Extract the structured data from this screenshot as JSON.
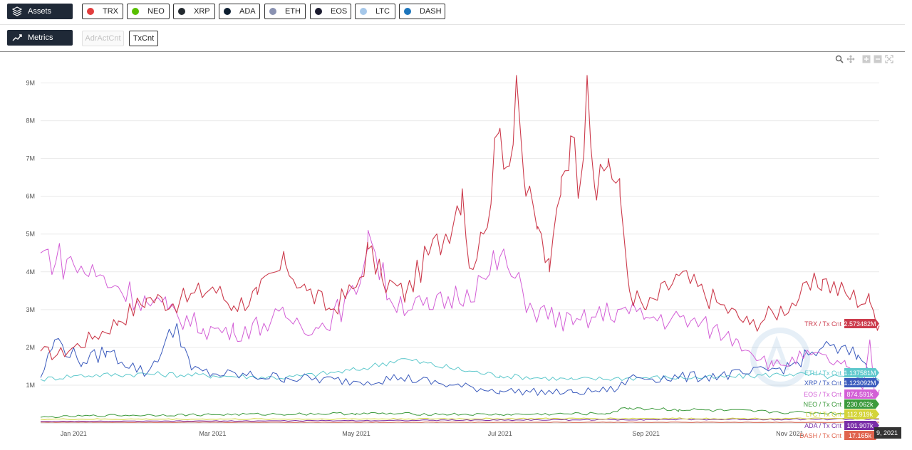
{
  "toolbar": {
    "assets_label": "Assets",
    "metrics_label": "Metrics",
    "assets": [
      {
        "symbol": "TRX",
        "color": "#e23d3d",
        "icon": "tron-icon"
      },
      {
        "symbol": "NEO",
        "color": "#58bf00",
        "icon": "neo-icon"
      },
      {
        "symbol": "XRP",
        "color": "#23292f",
        "icon": "xrp-icon"
      },
      {
        "symbol": "ADA",
        "color": "#0d1e30",
        "icon": "cardano-icon"
      },
      {
        "symbol": "ETH",
        "color": "#8a92b2",
        "icon": "ethereum-icon"
      },
      {
        "symbol": "EOS",
        "color": "#1b1b2f",
        "icon": "eos-icon"
      },
      {
        "symbol": "LTC",
        "color": "#a6c8ea",
        "icon": "litecoin-icon"
      },
      {
        "symbol": "DASH",
        "color": "#1c75bc",
        "icon": "dash-icon"
      }
    ],
    "metrics": [
      {
        "label": "AdrActCnt",
        "active": false
      },
      {
        "label": "TxCnt",
        "active": true
      }
    ]
  },
  "chart_data": {
    "type": "line",
    "y_ticks": [
      "1M",
      "2M",
      "3M",
      "4M",
      "5M",
      "6M",
      "7M",
      "8M",
      "9M"
    ],
    "x_ticks": [
      "Jan 2021",
      "Mar 2021",
      "May 2021",
      "Jul 2021",
      "Sep 2021",
      "Nov 2021"
    ],
    "ylim": [
      0,
      9500000
    ],
    "xlim": [
      "2020-12-18",
      "2021-12-09"
    ],
    "grid": true,
    "crosshair_date_partial": "9, 2021",
    "series": [
      {
        "name": "TRX / Tx Cnt",
        "color": "#cc3b4c",
        "last_value": "2.573482M",
        "points": [
          [
            "2020-12-18",
            1900000.0
          ],
          [
            "2020-12-25",
            1800000.0
          ],
          [
            "2021-01-01",
            2000000.0
          ],
          [
            "2021-01-10",
            2300000.0
          ],
          [
            "2021-01-20",
            2700000.0
          ],
          [
            "2021-02-01",
            3300000.0
          ],
          [
            "2021-02-15",
            3200000.0
          ],
          [
            "2021-03-01",
            3600000.0
          ],
          [
            "2021-03-10",
            3100000.0
          ],
          [
            "2021-03-20",
            3400000.0
          ],
          [
            "2021-04-01",
            4200000.0
          ],
          [
            "2021-04-10",
            3500000.0
          ],
          [
            "2021-04-20",
            3000000.0
          ],
          [
            "2021-05-01",
            3600000.0
          ],
          [
            "2021-05-06",
            4600000.0
          ],
          [
            "2021-05-12",
            3800000.0
          ],
          [
            "2021-05-22",
            3400000.0
          ],
          [
            "2021-06-01",
            4500000.0
          ],
          [
            "2021-06-08",
            5000000.0
          ],
          [
            "2021-06-15",
            6200000.0
          ],
          [
            "2021-06-18",
            4100000.0
          ],
          [
            "2021-06-24",
            5000000.0
          ],
          [
            "2021-07-01",
            7800000.0
          ],
          [
            "2021-07-05",
            6800000.0
          ],
          [
            "2021-07-08",
            9200000.0
          ],
          [
            "2021-07-12",
            6000000.0
          ],
          [
            "2021-07-17",
            5200000.0
          ],
          [
            "2021-07-22",
            4000000.0
          ],
          [
            "2021-07-27",
            6500000.0
          ],
          [
            "2021-07-31",
            7600000.0
          ],
          [
            "2021-08-04",
            6300000.0
          ],
          [
            "2021-08-07",
            9200000.0
          ],
          [
            "2021-08-11",
            5900000.0
          ],
          [
            "2021-08-16",
            7000000.0
          ],
          [
            "2021-08-21",
            6000000.0
          ],
          [
            "2021-08-25",
            3500000.0
          ],
          [
            "2021-09-01",
            3000000.0
          ],
          [
            "2021-09-15",
            3900000.0
          ],
          [
            "2021-10-01",
            3200000.0
          ],
          [
            "2021-10-15",
            2600000.0
          ],
          [
            "2021-10-25",
            2900000.0
          ],
          [
            "2021-11-05",
            3300000.0
          ],
          [
            "2021-11-15",
            3800000.0
          ],
          [
            "2021-11-25",
            3400000.0
          ],
          [
            "2021-12-05",
            3200000.0
          ],
          [
            "2021-12-09",
            2573482.0
          ]
        ]
      },
      {
        "name": "ETH / Tx Cnt",
        "color": "#5ec8cc",
        "last_value": "1.137581M",
        "points": [
          [
            "2020-12-18",
            1150000.0
          ],
          [
            "2021-01-01",
            1250000.0
          ],
          [
            "2021-02-01",
            1300000.0
          ],
          [
            "2021-03-01",
            1250000.0
          ],
          [
            "2021-04-01",
            1200000.0
          ],
          [
            "2021-05-01",
            1400000.0
          ],
          [
            "2021-05-20",
            1700000.0
          ],
          [
            "2021-06-10",
            1450000.0
          ],
          [
            "2021-07-01",
            1250000.0
          ],
          [
            "2021-08-01",
            1150000.0
          ],
          [
            "2021-09-01",
            1200000.0
          ],
          [
            "2021-10-01",
            1200000.0
          ],
          [
            "2021-11-01",
            1300000.0
          ],
          [
            "2021-12-09",
            1137581.0
          ]
        ]
      },
      {
        "name": "XRP / Tx Cnt",
        "color": "#3b5bbd",
        "last_value": "1.123092M",
        "points": [
          [
            "2020-12-18",
            1200000.0
          ],
          [
            "2020-12-24",
            2200000.0
          ],
          [
            "2021-01-05",
            1600000.0
          ],
          [
            "2021-01-15",
            1900000.0
          ],
          [
            "2021-02-01",
            1300000.0
          ],
          [
            "2021-02-14",
            2600000.0
          ],
          [
            "2021-02-20",
            1400000.0
          ],
          [
            "2021-03-01",
            1300000.0
          ],
          [
            "2021-04-01",
            1200000.0
          ],
          [
            "2021-05-01",
            1100000.0
          ],
          [
            "2021-05-20",
            1200000.0
          ],
          [
            "2021-06-10",
            1000000.0
          ],
          [
            "2021-07-01",
            850000.0
          ],
          [
            "2021-08-01",
            800000.0
          ],
          [
            "2021-08-20",
            900000.0
          ],
          [
            "2021-08-25",
            1200000.0
          ],
          [
            "2021-09-15",
            1200000.0
          ],
          [
            "2021-10-15",
            1300000.0
          ],
          [
            "2021-11-01",
            1500000.0
          ],
          [
            "2021-11-15",
            2000000.0
          ],
          [
            "2021-11-30",
            1800000.0
          ],
          [
            "2021-12-09",
            1123092.0
          ]
        ]
      },
      {
        "name": "EOS / Tx Cnt",
        "color": "#d35fd6",
        "last_value": "874.591k",
        "points": [
          [
            "2020-12-18",
            4500000.0
          ],
          [
            "2021-01-01",
            4200000.0
          ],
          [
            "2021-01-20",
            3600000.0
          ],
          [
            "2021-02-01",
            3200000.0
          ],
          [
            "2021-02-10",
            3000000.0
          ],
          [
            "2021-02-25",
            2500000.0
          ],
          [
            "2021-03-10",
            2400000.0
          ],
          [
            "2021-04-01",
            2800000.0
          ],
          [
            "2021-04-15",
            2500000.0
          ],
          [
            "2021-05-01",
            3400000.0
          ],
          [
            "2021-05-06",
            5100000.0
          ],
          [
            "2021-05-15",
            3300000.0
          ],
          [
            "2021-06-01",
            3000000.0
          ],
          [
            "2021-06-25",
            3800000.0
          ],
          [
            "2021-07-01",
            4400000.0
          ],
          [
            "2021-07-15",
            3000000.0
          ],
          [
            "2021-08-01",
            2600000.0
          ],
          [
            "2021-08-20",
            3000000.0
          ],
          [
            "2021-09-01",
            2800000.0
          ],
          [
            "2021-09-20",
            2700000.0
          ],
          [
            "2021-10-10",
            2200000.0
          ],
          [
            "2021-10-25",
            1500000.0
          ],
          [
            "2021-11-10",
            1800000.0
          ],
          [
            "2021-11-25",
            1500000.0
          ],
          [
            "2021-12-02",
            900000.0
          ],
          [
            "2021-12-05",
            2200000.0
          ],
          [
            "2021-12-07",
            700000.0
          ],
          [
            "2021-12-09",
            874591.0
          ]
        ]
      },
      {
        "name": "NEO / Tx Cnt",
        "color": "#3c9a3c",
        "last_value": "230.062k",
        "points": [
          [
            "2020-12-18",
            150000.0
          ],
          [
            "2021-01-15",
            200000.0
          ],
          [
            "2021-03-01",
            220000.0
          ],
          [
            "2021-05-01",
            250000.0
          ],
          [
            "2021-07-01",
            220000.0
          ],
          [
            "2021-08-15",
            250000.0
          ],
          [
            "2021-08-25",
            400000.0
          ],
          [
            "2021-09-15",
            350000.0
          ],
          [
            "2021-11-01",
            280000.0
          ],
          [
            "2021-12-09",
            230062.0
          ]
        ]
      },
      {
        "name": "LTC / Tx Cnt",
        "color": "#d4d43a",
        "last_value": "112.919k",
        "points": [
          [
            "2020-12-18",
            100000.0
          ],
          [
            "2021-03-01",
            100000.0
          ],
          [
            "2021-06-01",
            110000.0
          ],
          [
            "2021-09-01",
            120000.0
          ],
          [
            "2021-12-09",
            112919.0
          ]
        ]
      },
      {
        "name": "ADA / Tx Cnt",
        "color": "#7a2ea8",
        "last_value": "101.907k",
        "points": [
          [
            "2020-12-18",
            40000.0
          ],
          [
            "2021-03-01",
            50000.0
          ],
          [
            "2021-06-01",
            70000.0
          ],
          [
            "2021-09-01",
            90000.0
          ],
          [
            "2021-12-09",
            101907.0
          ]
        ]
      },
      {
        "name": "DASH / Tx Cnt",
        "color": "#e0644e",
        "last_value": "17.165k",
        "points": [
          [
            "2020-12-18",
            20000.0
          ],
          [
            "2021-06-01",
            20000.0
          ],
          [
            "2021-12-09",
            17165.0
          ]
        ]
      }
    ]
  }
}
